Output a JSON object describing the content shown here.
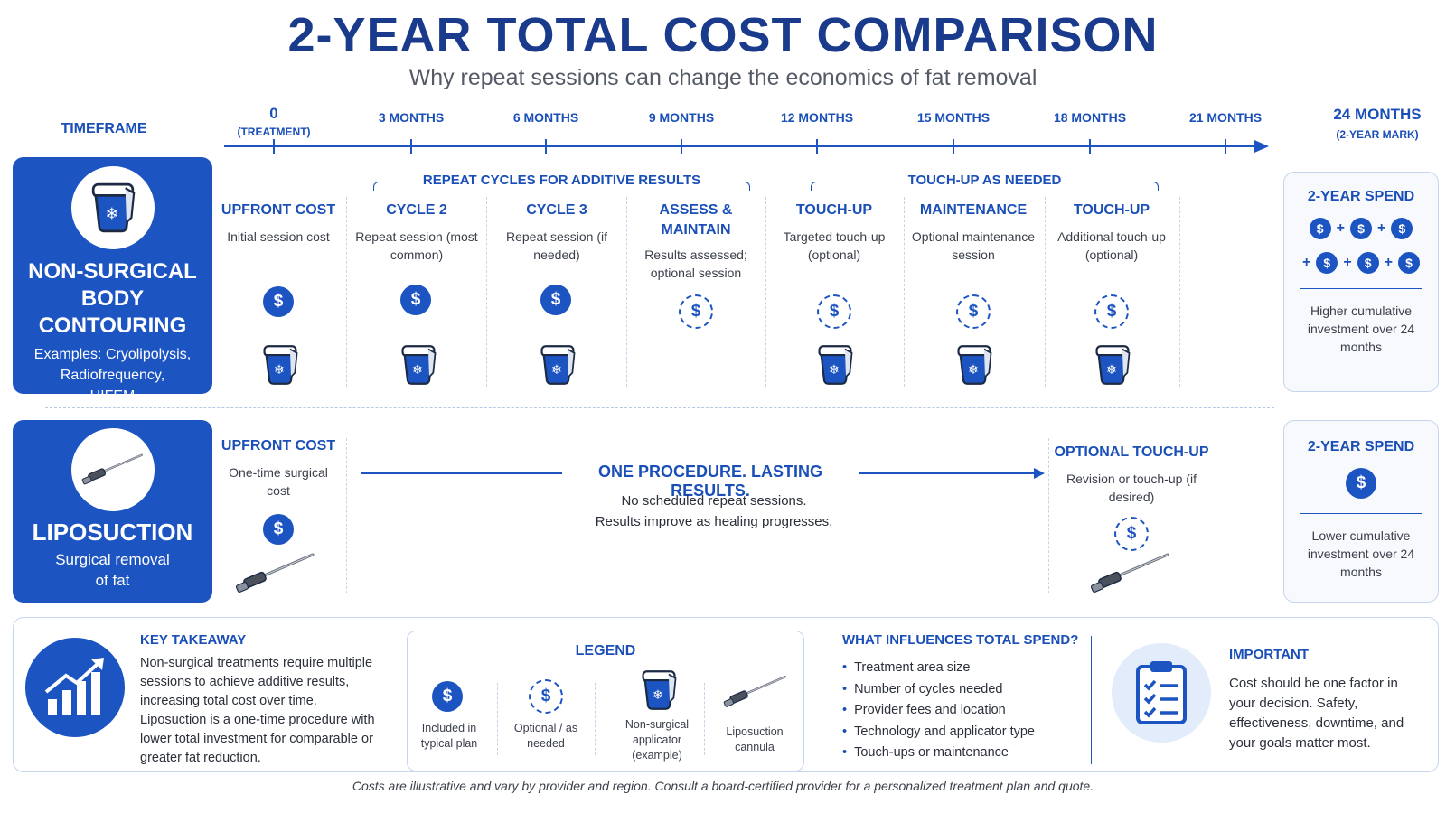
{
  "header": {
    "title": "2-YEAR TOTAL COST COMPARISON",
    "subtitle": "Why repeat sessions can change the economics of fat removal"
  },
  "timeline": {
    "label": "TIMEFRAME",
    "ticks": [
      {
        "label": "0",
        "sub": "(TREATMENT)"
      },
      {
        "label": "3 MONTHS"
      },
      {
        "label": "6 MONTHS"
      },
      {
        "label": "9 MONTHS"
      },
      {
        "label": "12 MONTHS"
      },
      {
        "label": "15 MONTHS"
      },
      {
        "label": "18 MONTHS"
      },
      {
        "label": "21 MONTHS"
      },
      {
        "label": "24 MONTHS",
        "sub": "(2-YEAR MARK)"
      }
    ]
  },
  "nonsurgical": {
    "title_line1": "NON-SURGICAL",
    "title_line2": "BODY CONTOURING",
    "examples_line1": "Examples: Cryolipolysis,",
    "examples_line2": "Radiofrequency,",
    "examples_line3": "HIFEM",
    "bracket_repeat": "REPEAT CYCLES FOR ADDITIVE RESULTS",
    "bracket_touchup": "TOUCH-UP AS NEEDED",
    "columns": [
      {
        "head": "UPFRONT COST",
        "desc": "Initial session cost",
        "cost": "included",
        "applicator": true
      },
      {
        "head": "CYCLE 2",
        "desc": "Repeat session (most common)",
        "cost": "included",
        "applicator": true
      },
      {
        "head": "CYCLE 3",
        "desc": "Repeat session (if needed)",
        "cost": "included",
        "applicator": true
      },
      {
        "head": "ASSESS & MAINTAIN",
        "desc": "Results assessed; optional session",
        "cost": "optional",
        "applicator": false
      },
      {
        "head": "TOUCH-UP",
        "desc": "Targeted touch-up (optional)",
        "cost": "optional",
        "applicator": true
      },
      {
        "head": "MAINTENANCE",
        "desc": "Optional maintenance session",
        "cost": "optional",
        "applicator": true
      },
      {
        "head": "TOUCH-UP",
        "desc": "Additional touch-up (optional)",
        "cost": "optional",
        "applicator": true
      }
    ],
    "spend": {
      "head": "2-YEAR SPEND",
      "text": "Higher cumulative investment over 24 months",
      "plus": "+"
    }
  },
  "liposuction": {
    "title": "LIPOSUCTION",
    "sub_line1": "Surgical removal",
    "sub_line2": "of fat",
    "upfront_head": "UPFRONT COST",
    "upfront_desc": "One-time surgical cost",
    "middle_head": "ONE PROCEDURE. LASTING RESULTS.",
    "middle_line1": "No scheduled repeat sessions.",
    "middle_line2": "Results improve as healing progresses.",
    "touchup_head": "OPTIONAL TOUCH-UP",
    "touchup_desc": "Revision or touch-up (if desired)",
    "spend": {
      "head": "2-YEAR SPEND",
      "text": "Lower cumulative investment over 24 months"
    }
  },
  "takeaway": {
    "head": "KEY TAKEAWAY",
    "text": "Non-surgical treatments require multiple sessions to achieve additive results, increasing total cost over time. Liposuction is a one-time procedure with lower total investment for comparable or greater fat reduction."
  },
  "legend": {
    "head": "LEGEND",
    "items": [
      {
        "label": "Included in typical plan"
      },
      {
        "label": "Optional / as needed"
      },
      {
        "label": "Non-surgical applicator (example)"
      },
      {
        "label": "Liposuction cannula"
      }
    ]
  },
  "influences": {
    "head": "WHAT INFLUENCES TOTAL SPEND?",
    "items": [
      "Treatment area size",
      "Number of cycles needed",
      "Provider fees and location",
      "Technology and applicator type",
      "Touch-ups or maintenance"
    ]
  },
  "important": {
    "head": "IMPORTANT",
    "text": "Cost should be one factor in your decision. Safety, effectiveness, downtime, and your goals matter most."
  },
  "coin_symbol": "$",
  "footer": "Costs are illustrative and vary by provider and region. Consult a board-certified provider for a personalized treatment plan and quote.",
  "colors": {
    "primary": "#1c54c2",
    "heading": "#1a3a8c",
    "light": "#e8effa"
  },
  "icons": [
    "applicator-icon",
    "cannula-icon",
    "dollar-coin-icon",
    "growth-chart-icon",
    "clipboard-checklist-icon"
  ]
}
